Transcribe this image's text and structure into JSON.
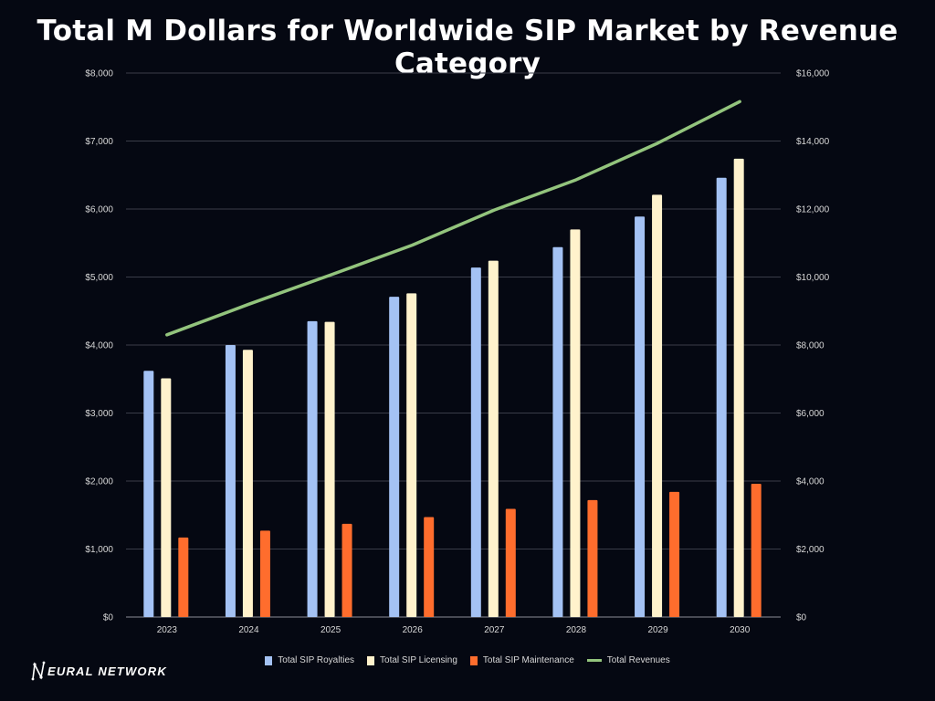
{
  "chart_data": {
    "type": "bar",
    "title": "Total M Dollars for Worldwide SIP Market by Revenue Category",
    "categories": [
      "2023",
      "2024",
      "2025",
      "2026",
      "2027",
      "2028",
      "2029",
      "2030"
    ],
    "series": [
      {
        "name": "Total SIP Royalties",
        "axis": "left",
        "type": "bar",
        "color": "#a4c2f4",
        "values": [
          3620,
          4000,
          4350,
          4710,
          5140,
          5440,
          5890,
          6460
        ]
      },
      {
        "name": "Total SIP Licensing",
        "axis": "left",
        "type": "bar",
        "color": "#fff2cc",
        "values": [
          3510,
          3930,
          4340,
          4760,
          5240,
          5700,
          6210,
          6740
        ]
      },
      {
        "name": "Total SIP Maintenance",
        "axis": "left",
        "type": "bar",
        "color": "#ff6d2d",
        "values": [
          1170,
          1270,
          1370,
          1470,
          1590,
          1720,
          1840,
          1960
        ]
      },
      {
        "name": "Total Revenues",
        "axis": "right",
        "type": "line",
        "color": "#93c47d",
        "values": [
          8300,
          9200,
          10060,
          10940,
          11970,
          12860,
          13940,
          15160
        ]
      }
    ],
    "y_left": {
      "ylim": [
        0,
        8000
      ],
      "ticks": [
        "$0",
        "$1,000",
        "$2,000",
        "$3,000",
        "$4,000",
        "$5,000",
        "$6,000",
        "$7,000",
        "$8,000"
      ]
    },
    "y_right": {
      "ylim": [
        0,
        16000
      ],
      "ticks": [
        "$0",
        "$2,000",
        "$4,000",
        "$6,000",
        "$8,000",
        "$10,000",
        "$12,000",
        "$14,000",
        "$16,000"
      ]
    },
    "grid": true,
    "legend": "bottom",
    "xlabel": "",
    "ylabel": ""
  },
  "branding": {
    "logo_text": "EURAL NETWORK"
  },
  "colors": {
    "background": "#050812",
    "grid": "#3a3d48",
    "text": "#d8d8d8"
  }
}
